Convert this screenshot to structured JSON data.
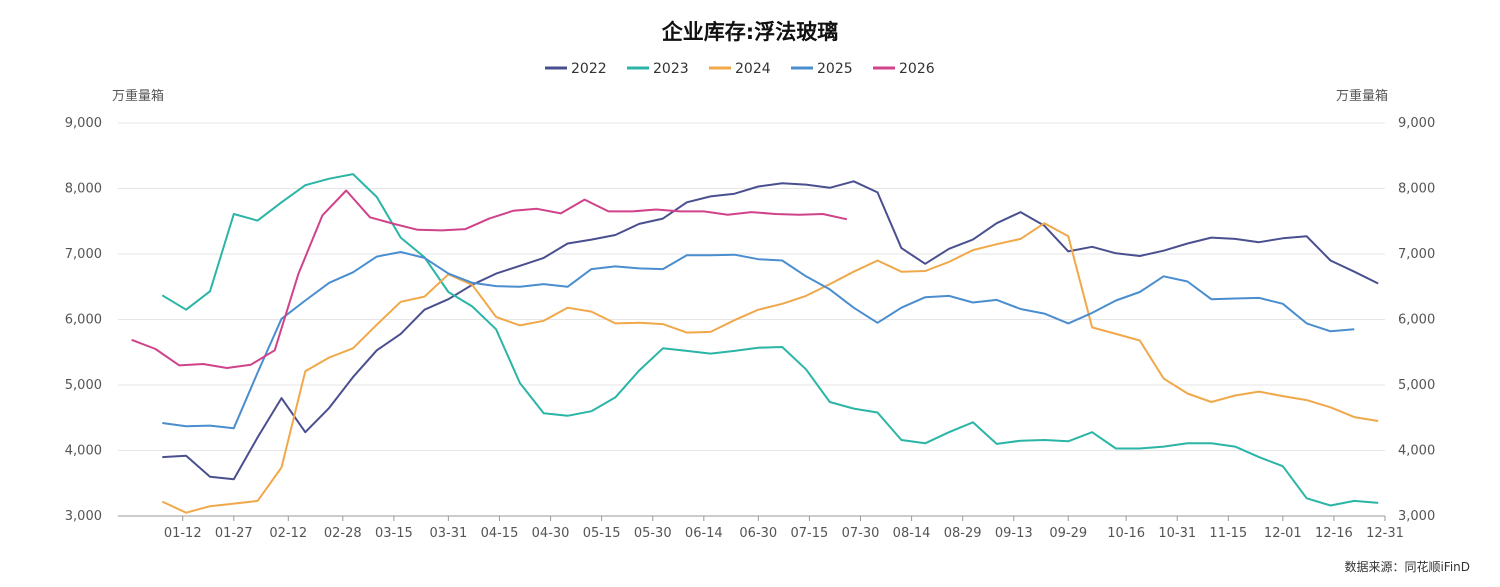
{
  "chart_data": {
    "type": "line",
    "title": "企业库存:浮法玻璃",
    "unit_left": "万重量箱",
    "unit_right": "万重量箱",
    "source": "数据来源：同花顺iFinD",
    "ylim": [
      3000,
      9000
    ],
    "y_ticks": [
      "3,000",
      "4,000",
      "5,000",
      "6,000",
      "7,000",
      "8,000",
      "9,000"
    ],
    "y_tick_values": [
      3000,
      4000,
      5000,
      6000,
      7000,
      8000,
      9000
    ],
    "x_ticks": [
      "01-12",
      "01-27",
      "02-12",
      "02-28",
      "03-15",
      "03-31",
      "04-15",
      "04-30",
      "05-15",
      "05-30",
      "06-14",
      "06-30",
      "07-15",
      "07-30",
      "08-14",
      "08-29",
      "09-13",
      "09-29",
      "10-16",
      "10-31",
      "11-15",
      "12-01",
      "12-16",
      "12-31"
    ],
    "x_tick_days": [
      12,
      27,
      43,
      59,
      74,
      90,
      105,
      120,
      135,
      150,
      165,
      181,
      196,
      211,
      226,
      241,
      256,
      272,
      289,
      304,
      319,
      335,
      350,
      365
    ],
    "legend_position": "top-center",
    "grid": true,
    "series": [
      {
        "name": "2022",
        "color": "#4a4f8f",
        "x": [
          6,
          13,
          20,
          27,
          34,
          41,
          48,
          55,
          62,
          69,
          76,
          83,
          90,
          97,
          104,
          111,
          118,
          125,
          132,
          139,
          146,
          153,
          160,
          167,
          174,
          181,
          188,
          195,
          202,
          209,
          216,
          223,
          230,
          237,
          244,
          251,
          258,
          265,
          272,
          279,
          286,
          293,
          300,
          307,
          314,
          321,
          328,
          335,
          342,
          349,
          356,
          363
        ],
        "y": [
          3900,
          3920,
          3600,
          3560,
          4200,
          4800,
          4280,
          4650,
          5120,
          5530,
          5780,
          6150,
          6310,
          6530,
          6700,
          6820,
          6940,
          7160,
          7220,
          7290,
          7460,
          7540,
          7790,
          7880,
          7920,
          8030,
          8080,
          8060,
          8010,
          8110,
          7940,
          7090,
          6850,
          7080,
          7220,
          7470,
          7640,
          7430,
          7040,
          7110,
          7010,
          6970,
          7050,
          7160,
          7250,
          7230,
          7180,
          7240,
          7270,
          6900,
          6730,
          6550
        ]
      },
      {
        "name": "2023",
        "color": "#2ab5a6",
        "x": [
          6,
          13,
          20,
          27,
          34,
          41,
          48,
          55,
          62,
          69,
          76,
          83,
          90,
          97,
          104,
          111,
          118,
          125,
          132,
          139,
          146,
          153,
          160,
          167,
          174,
          181,
          188,
          195,
          202,
          209,
          216,
          223,
          230,
          237,
          244,
          251,
          258,
          265,
          272,
          279,
          286,
          293,
          300,
          307,
          314,
          321,
          328,
          335,
          342,
          349,
          356,
          363
        ],
        "y": [
          6370,
          6150,
          6430,
          7610,
          7510,
          7790,
          8050,
          8150,
          8220,
          7870,
          7250,
          6950,
          6420,
          6200,
          5850,
          5030,
          4570,
          4530,
          4600,
          4810,
          5220,
          5560,
          5520,
          5480,
          5520,
          5570,
          5580,
          5240,
          4740,
          4640,
          4580,
          4160,
          4110,
          4280,
          4430,
          4100,
          4150,
          4160,
          4140,
          4280,
          4030,
          4030,
          4060,
          4110,
          4110,
          4060,
          3900,
          3760,
          3270,
          3160,
          3230,
          3200
        ]
      },
      {
        "name": "2024",
        "color": "#f0a84a",
        "x": [
          6,
          13,
          20,
          27,
          34,
          41,
          48,
          55,
          62,
          69,
          76,
          83,
          90,
          97,
          104,
          111,
          118,
          125,
          132,
          139,
          146,
          153,
          160,
          167,
          174,
          181,
          188,
          195,
          202,
          209,
          216,
          223,
          230,
          237,
          244,
          251,
          258,
          265,
          272,
          279,
          286,
          293,
          300,
          307,
          314,
          321,
          328,
          335,
          342,
          349,
          356,
          363
        ],
        "y": [
          3220,
          3050,
          3150,
          3190,
          3230,
          3740,
          5210,
          5420,
          5560,
          5920,
          6270,
          6350,
          6690,
          6530,
          6040,
          5910,
          5980,
          6180,
          6120,
          5940,
          5950,
          5930,
          5800,
          5810,
          5990,
          6150,
          6240,
          6360,
          6540,
          6730,
          6900,
          6730,
          6740,
          6880,
          7060,
          7150,
          7230,
          7470,
          7270,
          5880,
          5780,
          5680,
          5100,
          4870,
          4740,
          4840,
          4900,
          4830,
          4770,
          4660,
          4510,
          4450
        ]
      },
      {
        "name": "2025",
        "color": "#4a8ecf",
        "x": [
          6,
          13,
          20,
          27,
          34,
          41,
          48,
          55,
          62,
          69,
          76,
          83,
          90,
          97,
          104,
          111,
          118,
          125,
          132,
          139,
          146,
          153,
          160,
          167,
          174,
          181,
          188,
          195,
          202,
          209,
          216,
          223,
          230,
          237,
          244,
          251,
          258,
          265,
          272,
          279,
          286,
          293,
          300,
          307,
          314,
          321,
          328,
          335,
          342,
          349,
          356
        ],
        "y": [
          4420,
          4370,
          4380,
          4340,
          5190,
          6010,
          6290,
          6560,
          6720,
          6960,
          7030,
          6940,
          6700,
          6560,
          6510,
          6500,
          6540,
          6500,
          6770,
          6810,
          6780,
          6770,
          6980,
          6980,
          6990,
          6920,
          6900,
          6660,
          6460,
          6180,
          5950,
          6180,
          6340,
          6360,
          6260,
          6300,
          6160,
          6090,
          5940,
          6100,
          6290,
          6420,
          6660,
          6580,
          6310,
          6320,
          6330,
          6240,
          5940,
          5820,
          5850
        ]
      },
      {
        "name": "2026",
        "color": "#d0428a",
        "x": [
          -3,
          4,
          11,
          18,
          25,
          32,
          39,
          46,
          53,
          60,
          67,
          74,
          81,
          88,
          95,
          102,
          109,
          116,
          123,
          130,
          137,
          144,
          151,
          158,
          165,
          172,
          179,
          186,
          193,
          200,
          207
        ],
        "y": [
          5690,
          5550,
          5300,
          5320,
          5260,
          5310,
          5530,
          6700,
          7590,
          7970,
          7560,
          7460,
          7370,
          7360,
          7380,
          7540,
          7660,
          7690,
          7620,
          7830,
          7650,
          7650,
          7680,
          7650,
          7650,
          7600,
          7640,
          7610,
          7600,
          7610,
          7530
        ]
      }
    ]
  }
}
